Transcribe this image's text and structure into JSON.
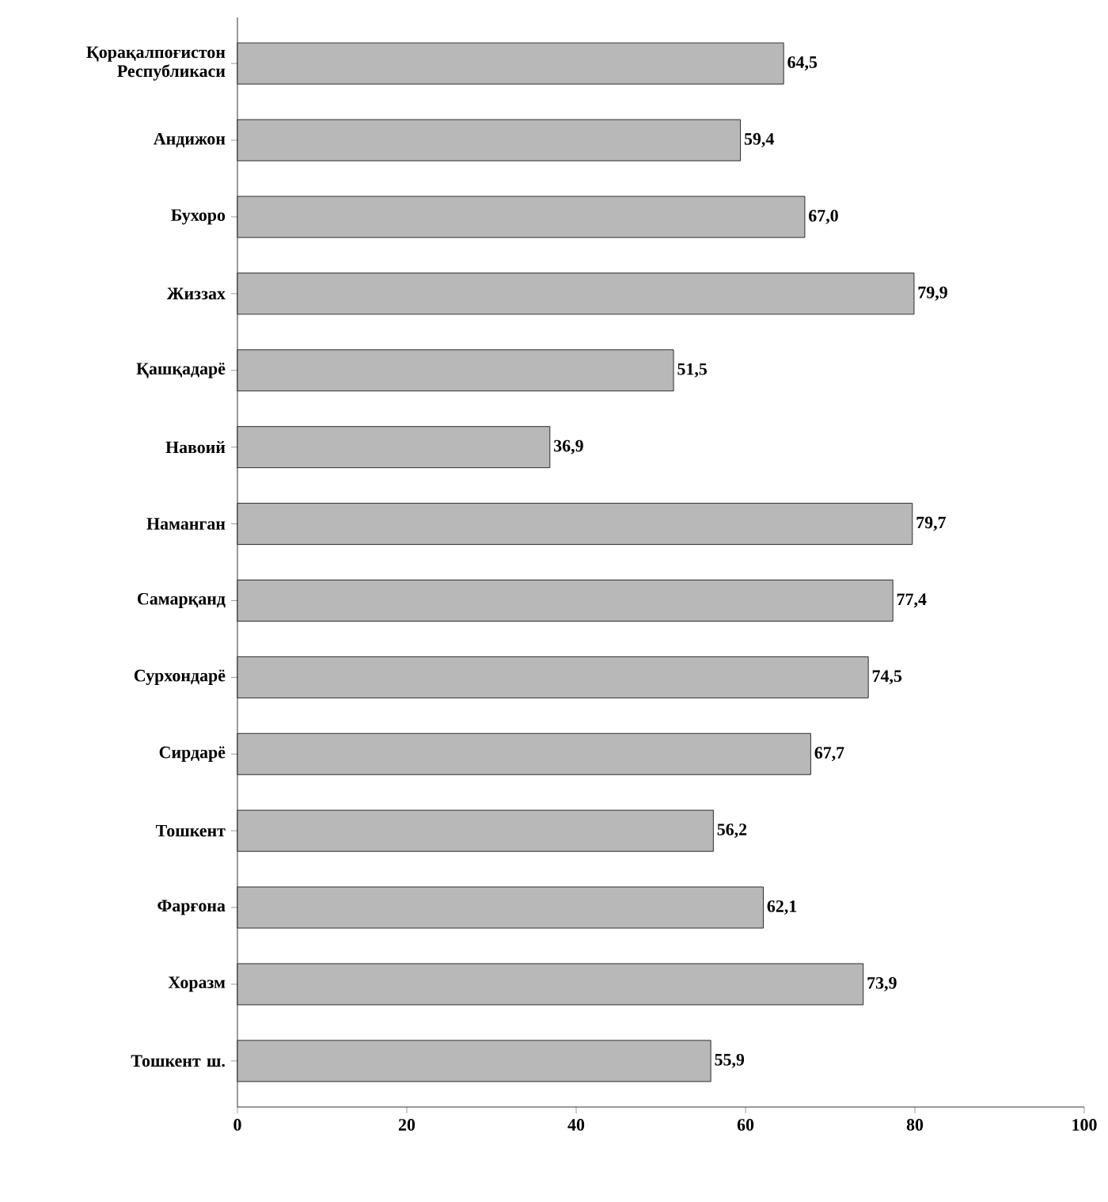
{
  "chart_data": {
    "type": "bar",
    "orientation": "horizontal",
    "categories": [
      "Қорақалпоғистон Республикаси",
      "Андижон",
      "Бухоро",
      "Жиззах",
      "Қашқадарё",
      "Навоий",
      "Наманган",
      "Самарқанд",
      "Сурхондарё",
      "Сирдарё",
      "Тошкент",
      "Фарғона",
      "Хоразм",
      "Тошкент ш."
    ],
    "values": [
      64.5,
      59.4,
      67.0,
      79.9,
      51.5,
      36.9,
      79.7,
      77.4,
      74.5,
      67.7,
      56.2,
      62.1,
      73.9,
      55.9
    ],
    "value_labels": [
      "64,5",
      "59,4",
      "67,0",
      "79,9",
      "51,5",
      "36,9",
      "79,7",
      "77,4",
      "74,5",
      "67,7",
      "56,2",
      "62,1",
      "73,9",
      "55,9"
    ],
    "color": "#b8b8b8",
    "xlim": [
      0,
      100
    ],
    "xticks": [
      0,
      20,
      40,
      60,
      80,
      100
    ],
    "grid": false
  }
}
